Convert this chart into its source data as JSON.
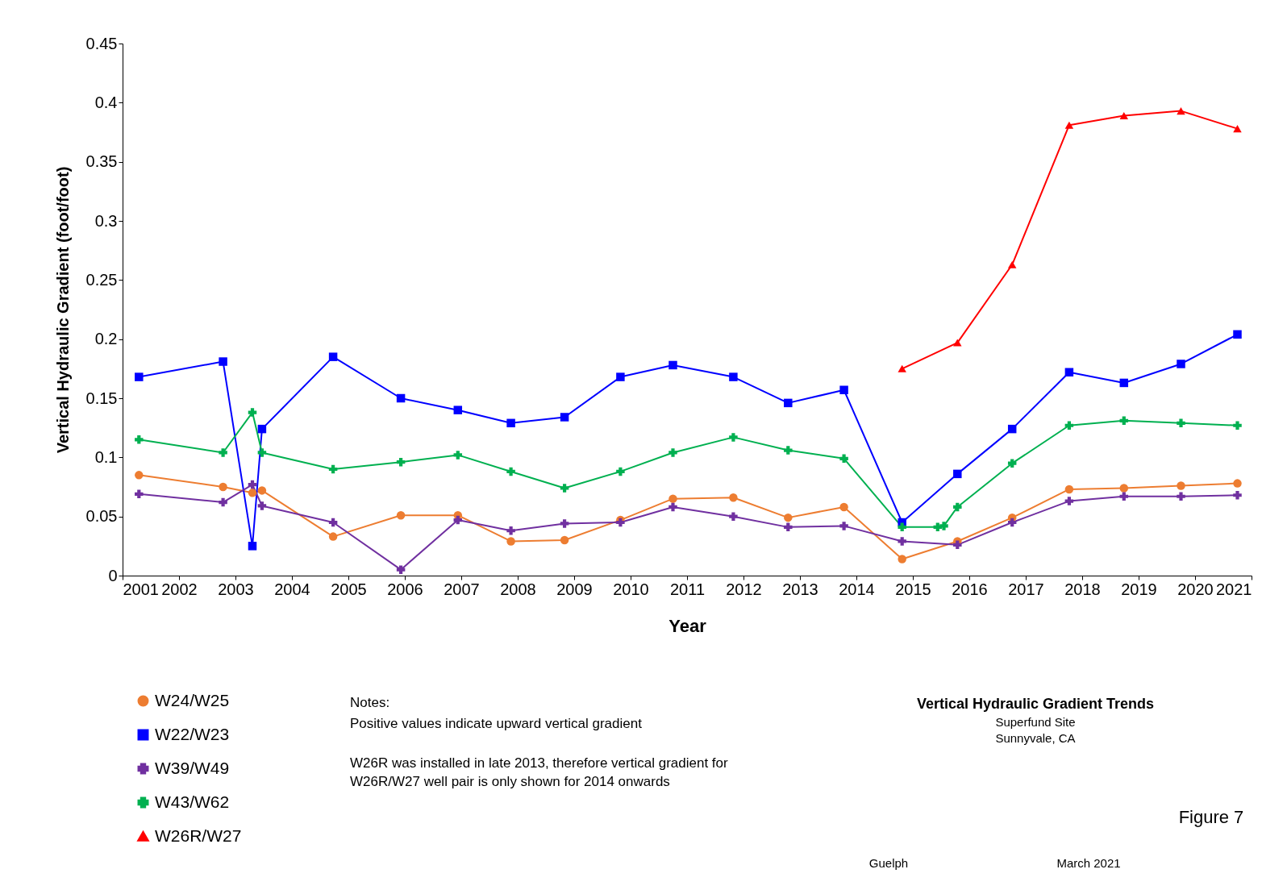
{
  "chart_data": {
    "type": "line",
    "title": "Vertical Hydraulic Gradient Trends",
    "subtitle": "Superfund Site",
    "xlabel": "Year",
    "ylabel": "Vertical Hydraulic Gradient (foot/foot)",
    "xlim": [
      2001,
      2021
    ],
    "xticks": [
      2001,
      2002,
      2003,
      2004,
      2005,
      2006,
      2007,
      2008,
      2009,
      2010,
      2011,
      2012,
      2013,
      2014,
      2015,
      2016,
      2017,
      2018,
      2019,
      2020,
      2021
    ],
    "ylim": [
      0,
      0.45
    ],
    "yticks": [
      0,
      0.05,
      0.1,
      0.15,
      0.2,
      0.25,
      0.3,
      0.35,
      0.4,
      0.45
    ],
    "grid": false,
    "legend": "bottom left",
    "line_style": "solid",
    "annotations": [
      "Notes:",
      "Positive values indicate upward vertical gradient",
      "W26R was installed in late 2013, therefore vertical gradient for",
      "W26R/W27 well pair is only shown for 2014 onwards",
      "Sunnyvale, CA",
      "Figure 7",
      "Guelph",
      "March 2021"
    ],
    "series": [
      {
        "name": "W24/W25",
        "color": "#ed7d31",
        "marker": "circle",
        "x": [
          2001.29,
          2002.78,
          2003.3,
          2003.47,
          2004.73,
          2005.93,
          2006.94,
          2007.88,
          2008.83,
          2009.82,
          2010.75,
          2011.82,
          2012.79,
          2013.78,
          2014.81,
          2015.79,
          2016.76,
          2017.77,
          2018.74,
          2019.75,
          2020.75
        ],
        "values": [
          0.085,
          0.075,
          0.07,
          0.072,
          0.033,
          0.051,
          0.051,
          0.029,
          0.03,
          0.047,
          0.065,
          0.066,
          0.049,
          0.058,
          0.014,
          0.029,
          0.049,
          0.073,
          0.074,
          0.076,
          0.078
        ]
      },
      {
        "name": "W22/W23",
        "color": "#0000ff",
        "marker": "square",
        "x": [
          2001.29,
          2002.78,
          2003.3,
          2003.47,
          2004.73,
          2005.93,
          2006.94,
          2007.88,
          2008.83,
          2009.82,
          2010.75,
          2011.82,
          2012.79,
          2013.78,
          2014.81,
          2015.79,
          2016.76,
          2017.77,
          2018.74,
          2019.75,
          2020.75
        ],
        "values": [
          0.168,
          0.181,
          0.025,
          0.124,
          0.185,
          0.15,
          0.14,
          0.129,
          0.134,
          0.168,
          0.178,
          0.168,
          0.146,
          0.157,
          0.045,
          0.086,
          0.124,
          0.172,
          0.163,
          0.179,
          0.204
        ]
      },
      {
        "name": "W39/W49",
        "color": "#7030a0",
        "marker": "cross",
        "x": [
          2001.29,
          2002.78,
          2003.3,
          2003.47,
          2004.73,
          2005.93,
          2006.94,
          2007.88,
          2008.83,
          2009.82,
          2010.75,
          2011.82,
          2012.79,
          2013.78,
          2014.81,
          2015.79,
          2016.76,
          2017.77,
          2018.74,
          2019.75,
          2020.75
        ],
        "values": [
          0.069,
          0.062,
          0.077,
          0.059,
          0.045,
          0.005,
          0.047,
          0.038,
          0.044,
          0.045,
          0.058,
          0.05,
          0.041,
          0.042,
          0.029,
          0.026,
          0.045,
          0.063,
          0.067,
          0.067,
          0.068
        ]
      },
      {
        "name": "W43/W62",
        "color": "#00b050",
        "marker": "cross",
        "x": [
          2001.29,
          2002.78,
          2003.3,
          2003.47,
          2004.73,
          2005.93,
          2006.94,
          2007.88,
          2008.83,
          2009.82,
          2010.75,
          2011.82,
          2012.79,
          2013.78,
          2014.81,
          2015.44,
          2015.55,
          2015.79,
          2016.76,
          2017.77,
          2018.74,
          2019.75,
          2020.75
        ],
        "values": [
          0.115,
          0.104,
          0.138,
          0.104,
          0.09,
          0.096,
          0.102,
          0.088,
          0.074,
          0.088,
          0.104,
          0.117,
          0.106,
          0.099,
          0.041,
          0.041,
          0.042,
          0.058,
          0.095,
          0.127,
          0.131,
          0.129,
          0.127
        ]
      },
      {
        "name": "W26R/W27",
        "color": "#ff0000",
        "marker": "triangle",
        "x": [
          2014.81,
          2015.79,
          2016.76,
          2017.77,
          2018.74,
          2019.75,
          2020.75
        ],
        "values": [
          0.175,
          0.197,
          0.263,
          0.381,
          0.389,
          0.393,
          0.378
        ]
      }
    ]
  }
}
